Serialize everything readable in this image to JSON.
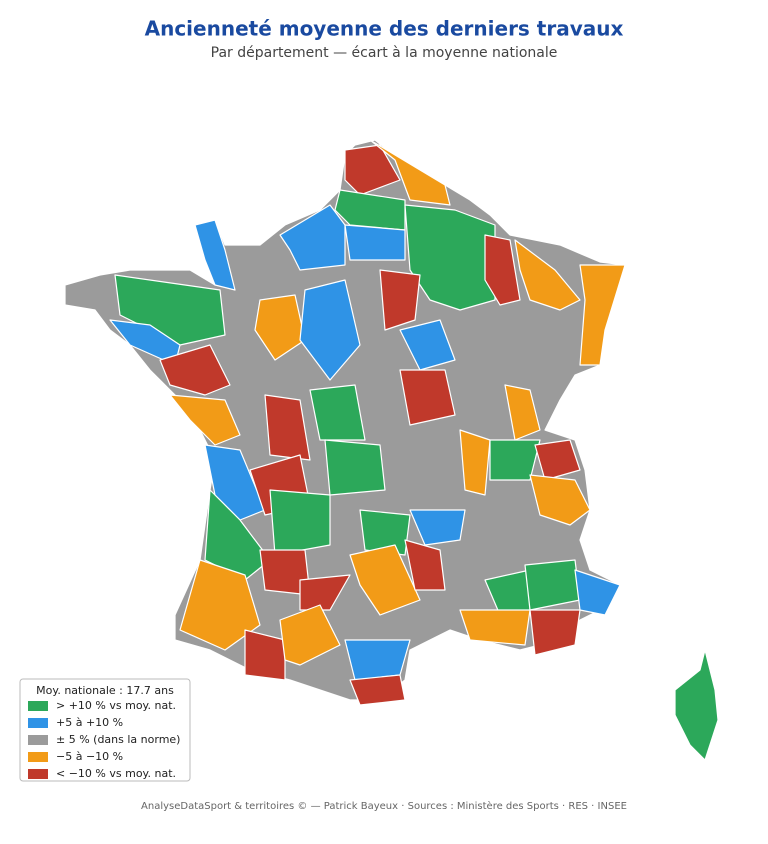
{
  "header": {
    "title": "Ancienneté moyenne des derniers travaux",
    "subtitle": "Par département — écart à la moyenne nationale"
  },
  "legend": {
    "title": "Moy. nationale : 17.7 ans",
    "items": [
      {
        "label": "> +10 % vs moy. nat.",
        "color": "#2ca85a"
      },
      {
        "label": "+5 à +10 %",
        "color": "#2f93e6"
      },
      {
        "label": "± 5 % (dans la norme)",
        "color": "#9b9b9b"
      },
      {
        "label": "−5 à −10 %",
        "color": "#f29b17"
      },
      {
        "label": "< −10 % vs moy. nat.",
        "color": "#c0392b"
      }
    ]
  },
  "footer": "AnalyseDataSport & territoires © — Patrick Bayeux  ·  Sources : Ministère des Sports · RES · INSEE"
}
